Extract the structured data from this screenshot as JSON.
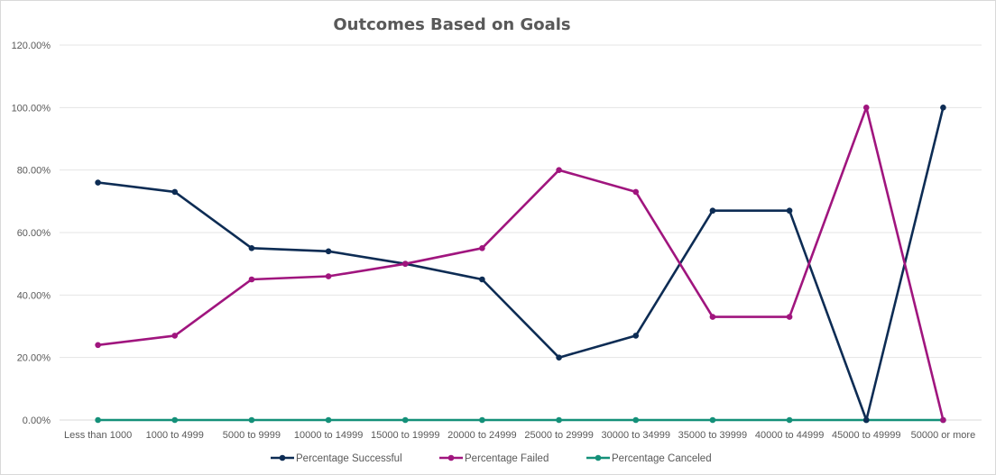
{
  "chart_data": {
    "type": "line",
    "title": "Outcomes Based on Goals",
    "xlabel": "",
    "ylabel": "",
    "ylim": [
      0,
      1.2
    ],
    "yticks": [
      0,
      0.2,
      0.4,
      0.6,
      0.8,
      1.0,
      1.2
    ],
    "ytick_labels": [
      "0.00%",
      "20.00%",
      "40.00%",
      "60.00%",
      "80.00%",
      "100.00%",
      "120.00%"
    ],
    "grid": true,
    "legend_position": "bottom",
    "categories": [
      "Less than 1000",
      "1000 to 4999",
      "5000 to 9999",
      "10000 to 14999",
      "15000 to 19999",
      "20000 to 24999",
      "25000 to 29999",
      "30000 to 34999",
      "35000 to 39999",
      "40000 to 44999",
      "45000 to 49999",
      "50000 or more"
    ],
    "series": [
      {
        "name": "Percentage Successful",
        "color": "#0d2c54",
        "values": [
          0.76,
          0.73,
          0.55,
          0.54,
          0.5,
          0.45,
          0.2,
          0.27,
          0.67,
          0.67,
          0.0,
          1.0
        ]
      },
      {
        "name": "Percentage Failed",
        "color": "#a0157e",
        "values": [
          0.24,
          0.27,
          0.45,
          0.46,
          0.5,
          0.55,
          0.8,
          0.73,
          0.33,
          0.33,
          1.0,
          0.0
        ]
      },
      {
        "name": "Percentage Canceled",
        "color": "#149079",
        "values": [
          0,
          0,
          0,
          0,
          0,
          0,
          0,
          0,
          0,
          0,
          0,
          0
        ]
      }
    ]
  }
}
